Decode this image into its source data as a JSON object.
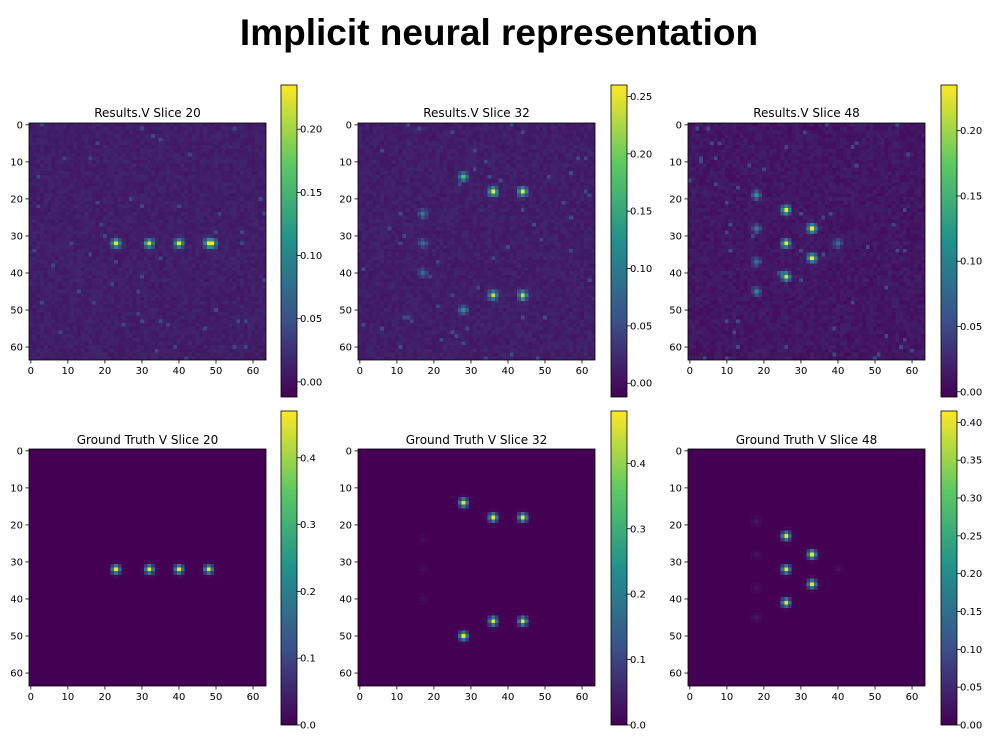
{
  "page": {
    "title": "Implicit neural representation"
  },
  "colormap": {
    "name": "viridis",
    "stops": [
      "#440154",
      "#3b528b",
      "#21918c",
      "#5ec962",
      "#fde725"
    ]
  },
  "chart_data": [
    {
      "type": "heatmap",
      "title": "Results.V Slice 20",
      "grid_size": 64,
      "xticks": [
        "0",
        "10",
        "20",
        "30",
        "40",
        "50",
        "60"
      ],
      "yticks": [
        "0",
        "10",
        "20",
        "30",
        "40",
        "50",
        "60"
      ],
      "xlim": [
        0,
        63
      ],
      "ylim": [
        63,
        0
      ],
      "background": 0.01,
      "noise": 0.012,
      "colorbar": {
        "range": [
          -0.012,
          0.235
        ],
        "ticks": [
          "0.00",
          "0.05",
          "0.10",
          "0.15",
          "0.20"
        ],
        "tick_values": [
          0.0,
          0.05,
          0.1,
          0.15,
          0.2
        ]
      },
      "peaks": [
        {
          "x": 23,
          "y": 32,
          "value": 0.22
        },
        {
          "x": 32,
          "y": 32,
          "value": 0.21
        },
        {
          "x": 40,
          "y": 32,
          "value": 0.22
        },
        {
          "x": 48,
          "y": 32,
          "value": 0.19
        },
        {
          "x": 49,
          "y": 32,
          "value": 0.17
        }
      ]
    },
    {
      "type": "heatmap",
      "title": "Results.V Slice 32",
      "grid_size": 64,
      "xticks": [
        "0",
        "10",
        "20",
        "30",
        "40",
        "50",
        "60"
      ],
      "yticks": [
        "0",
        "10",
        "20",
        "30",
        "40",
        "50",
        "60"
      ],
      "xlim": [
        0,
        63
      ],
      "ylim": [
        63,
        0
      ],
      "background": 0.012,
      "noise": 0.014,
      "colorbar": {
        "range": [
          -0.012,
          0.26
        ],
        "ticks": [
          "0.00",
          "0.05",
          "0.10",
          "0.15",
          "0.20",
          "0.25"
        ],
        "tick_values": [
          0.0,
          0.05,
          0.1,
          0.15,
          0.2,
          0.25
        ]
      },
      "peaks": [
        {
          "x": 28,
          "y": 14,
          "value": 0.17
        },
        {
          "x": 36,
          "y": 18,
          "value": 0.25
        },
        {
          "x": 44,
          "y": 18,
          "value": 0.25
        },
        {
          "x": 17,
          "y": 24,
          "value": 0.09
        },
        {
          "x": 17,
          "y": 32,
          "value": 0.08
        },
        {
          "x": 17,
          "y": 40,
          "value": 0.07
        },
        {
          "x": 36,
          "y": 46,
          "value": 0.22
        },
        {
          "x": 44,
          "y": 46,
          "value": 0.22
        },
        {
          "x": 28,
          "y": 50,
          "value": 0.11
        }
      ]
    },
    {
      "type": "heatmap",
      "title": "Results.V Slice 48",
      "grid_size": 64,
      "xticks": [
        "0",
        "10",
        "20",
        "30",
        "40",
        "50",
        "60"
      ],
      "yticks": [
        "0",
        "10",
        "20",
        "30",
        "40",
        "50",
        "60"
      ],
      "xlim": [
        0,
        63
      ],
      "ylim": [
        63,
        0
      ],
      "background": 0.012,
      "noise": 0.014,
      "colorbar": {
        "range": [
          -0.004,
          0.235
        ],
        "ticks": [
          "0.00",
          "0.05",
          "0.10",
          "0.15",
          "0.20"
        ],
        "tick_values": [
          0.0,
          0.05,
          0.1,
          0.15,
          0.2
        ]
      },
      "peaks": [
        {
          "x": 18,
          "y": 19,
          "value": 0.11
        },
        {
          "x": 26,
          "y": 23,
          "value": 0.23
        },
        {
          "x": 18,
          "y": 28,
          "value": 0.09
        },
        {
          "x": 33,
          "y": 28,
          "value": 0.23
        },
        {
          "x": 26,
          "y": 32,
          "value": 0.22
        },
        {
          "x": 40,
          "y": 32,
          "value": 0.08
        },
        {
          "x": 18,
          "y": 37,
          "value": 0.08
        },
        {
          "x": 33,
          "y": 36,
          "value": 0.23
        },
        {
          "x": 26,
          "y": 41,
          "value": 0.21
        },
        {
          "x": 18,
          "y": 45,
          "value": 0.09
        }
      ]
    },
    {
      "type": "heatmap",
      "title": "Ground Truth V Slice 20",
      "grid_size": 64,
      "xticks": [
        "0",
        "10",
        "20",
        "30",
        "40",
        "50",
        "60"
      ],
      "yticks": [
        "0",
        "10",
        "20",
        "30",
        "40",
        "50",
        "60"
      ],
      "xlim": [
        0,
        63
      ],
      "ylim": [
        63,
        0
      ],
      "background": 0.0,
      "noise": 0,
      "colorbar": {
        "range": [
          0.0,
          0.47
        ],
        "ticks": [
          "0.0",
          "0.1",
          "0.2",
          "0.3",
          "0.4"
        ],
        "tick_values": [
          0.0,
          0.1,
          0.2,
          0.3,
          0.4
        ]
      },
      "peaks": [
        {
          "x": 23,
          "y": 32,
          "value": 0.46
        },
        {
          "x": 32,
          "y": 32,
          "value": 0.46
        },
        {
          "x": 40,
          "y": 32,
          "value": 0.46
        },
        {
          "x": 48,
          "y": 32,
          "value": 0.46
        }
      ]
    },
    {
      "type": "heatmap",
      "title": "Ground Truth V Slice 32",
      "grid_size": 64,
      "xticks": [
        "0",
        "10",
        "20",
        "30",
        "40",
        "50",
        "60"
      ],
      "yticks": [
        "0",
        "10",
        "20",
        "30",
        "40",
        "50",
        "60"
      ],
      "xlim": [
        0,
        63
      ],
      "ylim": [
        63,
        0
      ],
      "background": 0.0,
      "noise": 0,
      "colorbar": {
        "range": [
          0.0,
          0.48
        ],
        "ticks": [
          "0.0",
          "0.1",
          "0.2",
          "0.3",
          "0.4"
        ],
        "tick_values": [
          0.0,
          0.1,
          0.2,
          0.3,
          0.4
        ]
      },
      "peaks": [
        {
          "x": 28,
          "y": 14,
          "value": 0.46
        },
        {
          "x": 36,
          "y": 18,
          "value": 0.46
        },
        {
          "x": 44,
          "y": 18,
          "value": 0.46
        },
        {
          "x": 17,
          "y": 24,
          "value": 0.02
        },
        {
          "x": 17,
          "y": 32,
          "value": 0.02
        },
        {
          "x": 17,
          "y": 40,
          "value": 0.02
        },
        {
          "x": 36,
          "y": 46,
          "value": 0.46
        },
        {
          "x": 44,
          "y": 46,
          "value": 0.46
        },
        {
          "x": 28,
          "y": 50,
          "value": 0.46
        }
      ]
    },
    {
      "type": "heatmap",
      "title": "Ground Truth V Slice 48",
      "grid_size": 64,
      "xticks": [
        "0",
        "10",
        "20",
        "30",
        "40",
        "50",
        "60"
      ],
      "yticks": [
        "0",
        "10",
        "20",
        "30",
        "40",
        "50",
        "60"
      ],
      "xlim": [
        0,
        63
      ],
      "ylim": [
        63,
        0
      ],
      "background": 0.0,
      "noise": 0,
      "colorbar": {
        "range": [
          0.0,
          0.415
        ],
        "ticks": [
          "0.00",
          "0.05",
          "0.10",
          "0.15",
          "0.20",
          "0.25",
          "0.30",
          "0.35",
          "0.40"
        ],
        "tick_values": [
          0.0,
          0.05,
          0.1,
          0.15,
          0.2,
          0.25,
          0.3,
          0.35,
          0.4
        ]
      },
      "peaks": [
        {
          "x": 18,
          "y": 19,
          "value": 0.03
        },
        {
          "x": 26,
          "y": 23,
          "value": 0.4
        },
        {
          "x": 18,
          "y": 28,
          "value": 0.02
        },
        {
          "x": 33,
          "y": 28,
          "value": 0.4
        },
        {
          "x": 26,
          "y": 32,
          "value": 0.4
        },
        {
          "x": 40,
          "y": 32,
          "value": 0.02
        },
        {
          "x": 18,
          "y": 37,
          "value": 0.02
        },
        {
          "x": 33,
          "y": 36,
          "value": 0.4
        },
        {
          "x": 26,
          "y": 41,
          "value": 0.4
        },
        {
          "x": 18,
          "y": 45,
          "value": 0.03
        }
      ]
    }
  ]
}
